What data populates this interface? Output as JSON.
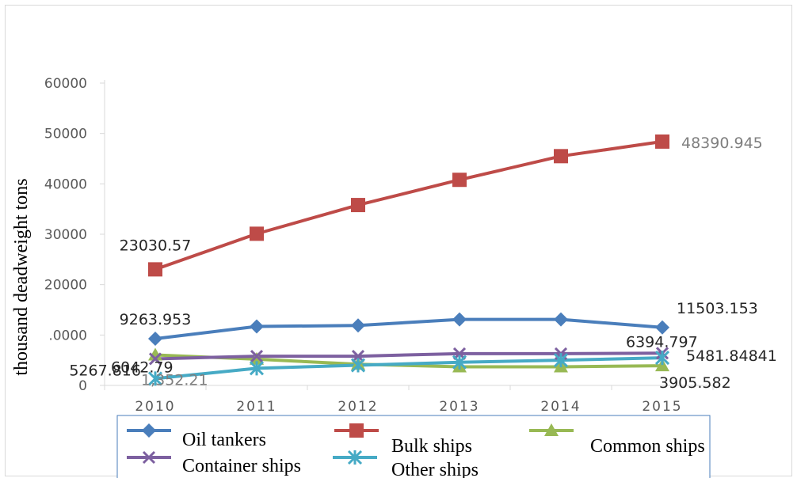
{
  "chart_data": {
    "type": "line",
    "title": "",
    "xlabel": "",
    "ylabel": "thousand deadweight tons",
    "categories": [
      "2010",
      "2011",
      "2012",
      "2013",
      "2014",
      "2015"
    ],
    "ylim": [
      0,
      60000
    ],
    "yticks": [
      "0",
      ".0000",
      "20000",
      "30000",
      "40000",
      "50000",
      "60000"
    ],
    "series": [
      {
        "name": "Oil tankers",
        "color": "#4a7ebb",
        "marker": "diamond",
        "values": [
          9263.953,
          11700,
          11900,
          13100,
          13100,
          11503.153
        ]
      },
      {
        "name": "Bulk ships",
        "color": "#be4b48",
        "marker": "square",
        "values": [
          23030.57,
          30100,
          35800,
          40800,
          45500,
          48390.945
        ]
      },
      {
        "name": "Common ships",
        "color": "#98b954",
        "marker": "triangle",
        "values": [
          6042.79,
          5200,
          4200,
          3700,
          3700,
          3905.582
        ]
      },
      {
        "name": "Container ships",
        "color": "#7d60a0",
        "marker": "x",
        "values": [
          5267.816,
          5800,
          5800,
          6300,
          6300,
          6394.797
        ]
      },
      {
        "name": "Other ships",
        "color": "#46aac5",
        "marker": "star",
        "values": [
          1352.21,
          3400,
          4000,
          4600,
          5000,
          5481.84841
        ]
      }
    ],
    "data_labels": [
      {
        "series": 1,
        "index": 0,
        "text": "23030.57"
      },
      {
        "series": 1,
        "index": 5,
        "text": "48390.945"
      },
      {
        "series": 0,
        "index": 0,
        "text": "9263.953"
      },
      {
        "series": 0,
        "index": 5,
        "text": "11503.153"
      },
      {
        "series": 2,
        "index": 0,
        "text": "6042.79"
      },
      {
        "series": 3,
        "index": 0,
        "text": "5267.816"
      },
      {
        "series": 4,
        "index": 0,
        "text": "1,352.21"
      },
      {
        "series": 3,
        "index": 5,
        "text": "6394.797"
      },
      {
        "series": 4,
        "index": 5,
        "text": "5481.84841"
      },
      {
        "series": 2,
        "index": 5,
        "text": "3905.582"
      }
    ],
    "grid": false,
    "legend": "bottom"
  }
}
